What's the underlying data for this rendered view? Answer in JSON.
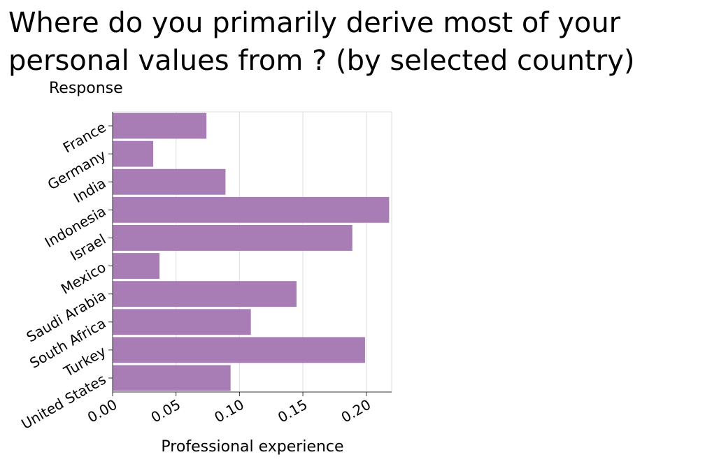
{
  "chart_data": {
    "type": "bar",
    "orientation": "horizontal",
    "title": "Where do you primarily derive most of your personal values from ? (by selected country)",
    "ylabel": "Response",
    "xlabel": "Professional experience",
    "categories": [
      "France",
      "Germany",
      "India",
      "Indonesia",
      "Israel",
      "Mexico",
      "Saudi Arabia",
      "South Africa",
      "Turkey",
      "United States"
    ],
    "values": [
      0.074,
      0.032,
      0.089,
      0.218,
      0.189,
      0.037,
      0.145,
      0.109,
      0.199,
      0.093
    ],
    "xlim": [
      0,
      0.22
    ],
    "xticks": [
      "0.00",
      "0.05",
      "0.10",
      "0.15",
      "0.20"
    ],
    "grid": "vertical",
    "bar_color": "#a87db5"
  }
}
